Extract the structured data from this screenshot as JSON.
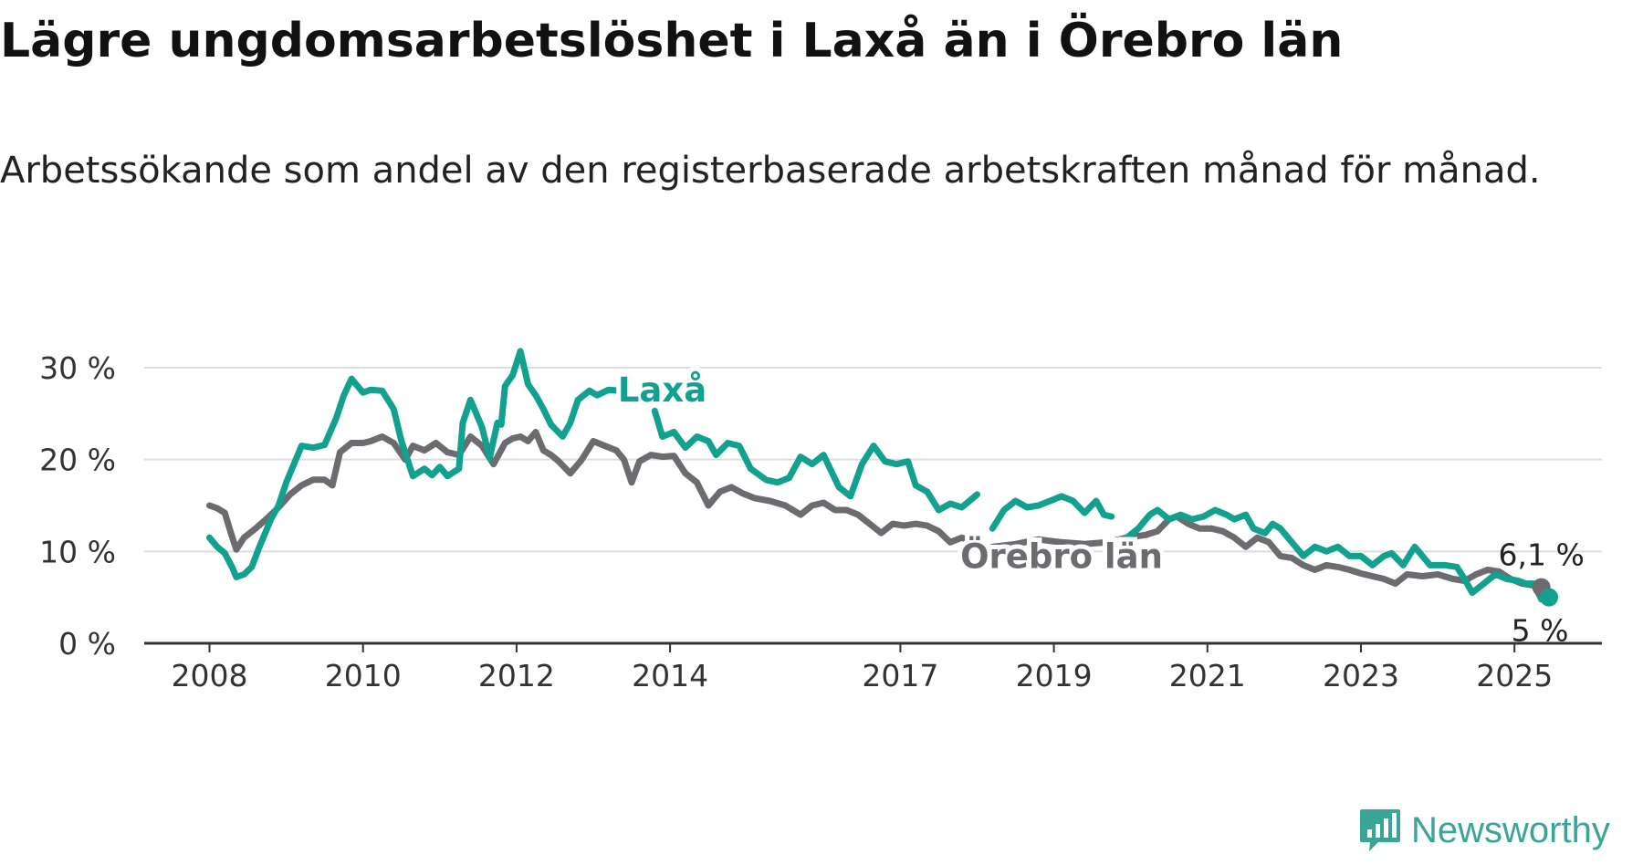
{
  "title": "Lägre ungdomsarbetslöshet i Laxå än i Örebro län",
  "subtitle": "Arbetssökande som andel av den registerbaserade arbetskraften månad för månad.",
  "brand": {
    "name": "Newsworthy",
    "color": "#3aa596",
    "icon": "bar-chart-icon"
  },
  "colors": {
    "laxa": "#12a08f",
    "orebro": "#6b6b70",
    "grid": "#dddddd",
    "axis": "#333333"
  },
  "chart_data": {
    "type": "line",
    "title": "Lägre ungdomsarbetslöshet i Laxå än i Örebro län",
    "subtitle": "Arbetssökande som andel av den registerbaserade arbetskraften månad för månad.",
    "xlabel": "",
    "ylabel": "",
    "ylim": [
      0,
      30
    ],
    "xlim": [
      2007.9,
      2025.8
    ],
    "yticks": [
      {
        "value": 0,
        "label": "0 %"
      },
      {
        "value": 10,
        "label": "10 %"
      },
      {
        "value": 20,
        "label": "20 %"
      },
      {
        "value": 30,
        "label": "30 %"
      }
    ],
    "xticks": [
      {
        "value": 2008,
        "label": "2008"
      },
      {
        "value": 2010,
        "label": "2010"
      },
      {
        "value": 2012,
        "label": "2012"
      },
      {
        "value": 2014,
        "label": "2014"
      },
      {
        "value": 2017,
        "label": "2017"
      },
      {
        "value": 2019,
        "label": "2019"
      },
      {
        "value": 2021,
        "label": "2021"
      },
      {
        "value": 2023,
        "label": "2023"
      },
      {
        "value": 2025,
        "label": "2025"
      }
    ],
    "grid": true,
    "legend": "inline labels",
    "series": [
      {
        "name": "Laxå",
        "label_at": [
          2013.2,
          27.6
        ],
        "end_label": "5 %",
        "gaps": [
          [
            2013.35,
            2013.8
          ],
          [
            2018.0,
            2018.2
          ],
          [
            2019.75,
            2019.95
          ]
        ],
        "x": [
          2008.0,
          2008.1,
          2008.2,
          2008.3,
          2008.35,
          2008.45,
          2008.55,
          2008.65,
          2008.8,
          2008.9,
          2009.0,
          2009.2,
          2009.35,
          2009.5,
          2009.65,
          2009.75,
          2009.85,
          2010.0,
          2010.1,
          2010.25,
          2010.4,
          2010.5,
          2010.65,
          2010.8,
          2010.9,
          2011.0,
          2011.1,
          2011.25,
          2011.3,
          2011.4,
          2011.55,
          2011.65,
          2011.75,
          2011.8,
          2011.85,
          2011.95,
          2012.05,
          2012.15,
          2012.25,
          2012.35,
          2012.45,
          2012.6,
          2012.7,
          2012.8,
          2012.95,
          2013.05,
          2013.2,
          2013.35,
          2013.8,
          2013.9,
          2014.05,
          2014.2,
          2014.35,
          2014.5,
          2014.6,
          2014.75,
          2014.9,
          2015.05,
          2015.25,
          2015.4,
          2015.55,
          2015.7,
          2015.85,
          2016.0,
          2016.2,
          2016.35,
          2016.5,
          2016.65,
          2016.8,
          2016.95,
          2017.1,
          2017.2,
          2017.35,
          2017.5,
          2017.65,
          2017.8,
          2017.9,
          2018.0,
          2018.2,
          2018.35,
          2018.5,
          2018.65,
          2018.8,
          2018.95,
          2019.1,
          2019.25,
          2019.4,
          2019.55,
          2019.65,
          2019.75,
          2019.95,
          2020.1,
          2020.25,
          2020.35,
          2020.5,
          2020.65,
          2020.8,
          2020.95,
          2021.1,
          2021.25,
          2021.35,
          2021.5,
          2021.6,
          2021.75,
          2021.85,
          2021.95,
          2022.1,
          2022.25,
          2022.4,
          2022.55,
          2022.7,
          2022.85,
          2023.0,
          2023.15,
          2023.3,
          2023.4,
          2023.55,
          2023.7,
          2023.9,
          2024.1,
          2024.25,
          2024.35,
          2024.45,
          2024.6,
          2024.75,
          2024.9,
          2025.05,
          2025.15,
          2025.25,
          2025.35,
          2025.45
        ],
        "y": [
          11.5,
          10.5,
          9.8,
          8.2,
          7.2,
          7.5,
          8.3,
          10.5,
          13.5,
          15.0,
          17.5,
          21.5,
          21.3,
          21.6,
          24.5,
          27.0,
          28.8,
          27.3,
          27.6,
          27.5,
          25.5,
          22.0,
          18.2,
          19.0,
          18.3,
          19.2,
          18.2,
          19.0,
          24.0,
          26.5,
          23.5,
          20.2,
          24.0,
          23.8,
          28.0,
          29.2,
          31.8,
          28.2,
          27.0,
          25.5,
          23.8,
          22.5,
          24.0,
          26.5,
          27.5,
          27.0,
          27.6,
          27.5,
          25.3,
          22.5,
          23.0,
          21.3,
          22.5,
          22.0,
          20.5,
          21.8,
          21.5,
          19.0,
          17.8,
          17.5,
          18.0,
          20.3,
          19.5,
          20.5,
          17.0,
          16.0,
          19.5,
          21.5,
          19.8,
          19.5,
          19.8,
          17.2,
          16.5,
          14.5,
          15.2,
          14.8,
          15.5,
          16.2,
          12.5,
          14.5,
          15.5,
          14.8,
          15.0,
          15.5,
          16.0,
          15.5,
          14.2,
          15.5,
          14.0,
          13.8,
          11.5,
          12.5,
          14.0,
          14.5,
          13.5,
          14.0,
          13.5,
          13.8,
          14.5,
          14.0,
          13.5,
          14.0,
          12.5,
          12.0,
          13.0,
          12.5,
          11.0,
          9.5,
          10.5,
          10.0,
          10.5,
          9.5,
          9.5,
          8.5,
          9.5,
          9.8,
          8.5,
          10.5,
          8.5,
          8.5,
          8.3,
          7.0,
          5.5,
          6.5,
          7.5,
          7.0,
          6.8,
          6.5,
          6.5,
          4.8,
          5.0
        ]
      },
      {
        "name": "Örebro län",
        "label_at": [
          2019.1,
          9.5
        ],
        "end_label": "6,1 %",
        "gaps": [
          [
            2018.05,
            2018.2
          ]
        ],
        "x": [
          2008.0,
          2008.1,
          2008.2,
          2008.28,
          2008.35,
          2008.45,
          2008.6,
          2008.75,
          2008.9,
          2009.05,
          2009.2,
          2009.35,
          2009.5,
          2009.6,
          2009.7,
          2009.85,
          2010.0,
          2010.1,
          2010.25,
          2010.4,
          2010.55,
          2010.65,
          2010.8,
          2010.95,
          2011.1,
          2011.25,
          2011.4,
          2011.55,
          2011.7,
          2011.85,
          2011.95,
          2012.05,
          2012.15,
          2012.25,
          2012.35,
          2012.45,
          2012.55,
          2012.7,
          2012.85,
          2013.0,
          2013.15,
          2013.3,
          2013.4,
          2013.5,
          2013.6,
          2013.75,
          2013.9,
          2014.05,
          2014.2,
          2014.35,
          2014.5,
          2014.65,
          2014.8,
          2014.95,
          2015.1,
          2015.3,
          2015.5,
          2015.7,
          2015.85,
          2016.0,
          2016.15,
          2016.3,
          2016.45,
          2016.6,
          2016.75,
          2016.9,
          2017.05,
          2017.2,
          2017.35,
          2017.5,
          2017.65,
          2017.8,
          2017.95,
          2018.05,
          2018.2,
          2018.5,
          2018.8,
          2019.1,
          2019.4,
          2019.7,
          2019.95,
          2020.2,
          2020.35,
          2020.5,
          2020.6,
          2020.75,
          2020.9,
          2021.05,
          2021.2,
          2021.35,
          2021.5,
          2021.65,
          2021.8,
          2021.95,
          2022.1,
          2022.25,
          2022.4,
          2022.55,
          2022.7,
          2022.85,
          2023.0,
          2023.15,
          2023.3,
          2023.45,
          2023.6,
          2023.8,
          2024.0,
          2024.2,
          2024.35,
          2024.5,
          2024.65,
          2024.8,
          2024.95,
          2025.1,
          2025.25,
          2025.35
        ],
        "y": [
          15.0,
          14.7,
          14.2,
          12.0,
          10.2,
          11.5,
          12.5,
          13.6,
          14.8,
          16.2,
          17.2,
          17.8,
          17.8,
          17.2,
          20.8,
          21.8,
          21.8,
          22.0,
          22.5,
          21.8,
          20.0,
          21.5,
          21.0,
          21.8,
          20.8,
          20.5,
          22.5,
          21.5,
          19.5,
          21.8,
          22.3,
          22.5,
          22.0,
          23.0,
          21.0,
          20.5,
          19.8,
          18.5,
          20.0,
          22.0,
          21.5,
          21.0,
          20.0,
          17.5,
          19.8,
          20.5,
          20.3,
          20.4,
          18.5,
          17.5,
          15.0,
          16.5,
          17.0,
          16.3,
          15.8,
          15.5,
          15.0,
          14.0,
          15.0,
          15.3,
          14.5,
          14.5,
          14.0,
          13.0,
          12.0,
          13.0,
          12.8,
          13.0,
          12.8,
          12.2,
          11.0,
          11.5,
          11.0,
          10.8,
          10.5,
          10.8,
          11.3,
          11.0,
          10.8,
          11.0,
          11.5,
          11.8,
          12.2,
          13.5,
          13.8,
          13.0,
          12.5,
          12.5,
          12.2,
          11.5,
          10.5,
          11.5,
          11.0,
          9.5,
          9.3,
          8.5,
          8.0,
          8.5,
          8.3,
          8.0,
          7.6,
          7.3,
          7.0,
          6.5,
          7.5,
          7.3,
          7.5,
          7.0,
          6.8,
          7.5,
          8.0,
          7.8,
          7.0,
          6.5,
          6.3,
          6.1
        ]
      }
    ]
  }
}
